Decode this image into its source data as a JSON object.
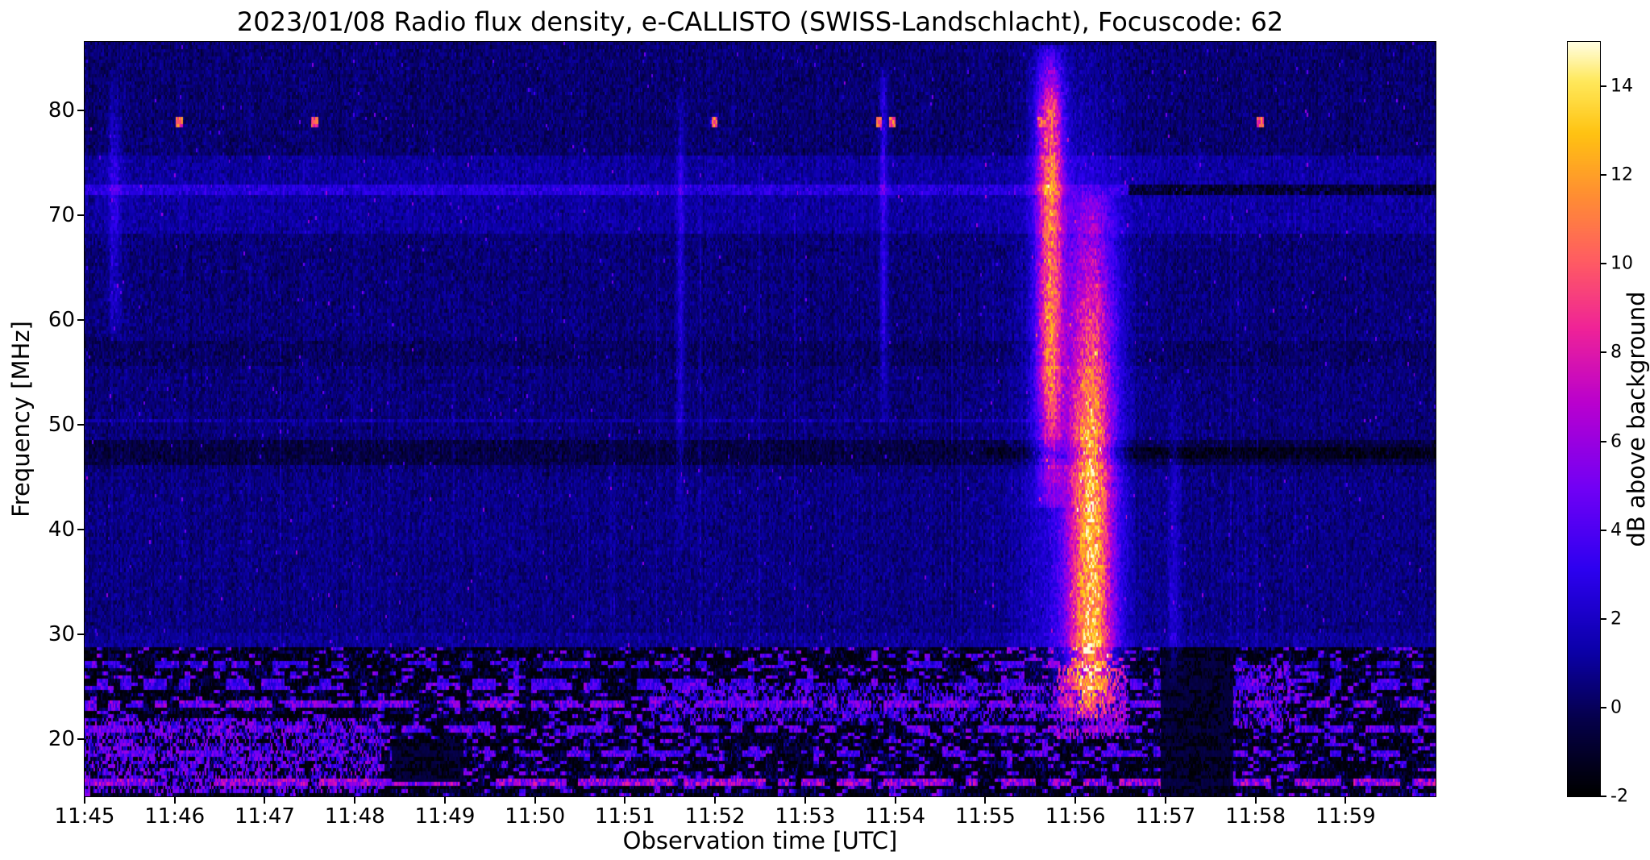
{
  "chart_data": {
    "type": "heatmap",
    "title": "2023/01/08  Radio flux density, e-CALLISTO (SWISS-Landschlacht), Focuscode: 62",
    "xlabel": "Observation time [UTC]",
    "ylabel": "Frequency [MHz]",
    "x_ticks": [
      "11:45",
      "11:46",
      "11:47",
      "11:48",
      "11:49",
      "11:50",
      "11:51",
      "11:52",
      "11:53",
      "11:54",
      "11:55",
      "11:56",
      "11:57",
      "11:58",
      "11:59"
    ],
    "x_range_minutes_after_start": [
      0,
      15
    ],
    "y_ticks": [
      20,
      30,
      40,
      50,
      60,
      70,
      80
    ],
    "y_range_mhz": [
      14.5,
      86.5
    ],
    "grid": false,
    "colorbar": {
      "label": "dB above background",
      "ticks": [
        14,
        12,
        10,
        8,
        6,
        4,
        2,
        0,
        -2
      ],
      "range_db": [
        -2,
        15
      ],
      "colormap": "gnuplot2-like",
      "stops": [
        {
          "pos": 0.0,
          "color": "#000000"
        },
        {
          "pos": 0.1,
          "color": "#05004a"
        },
        {
          "pos": 0.19,
          "color": "#0b00a8"
        },
        {
          "pos": 0.3,
          "color": "#2d00f0"
        },
        {
          "pos": 0.41,
          "color": "#7300f5"
        },
        {
          "pos": 0.52,
          "color": "#b900cf"
        },
        {
          "pos": 0.62,
          "color": "#ef2398"
        },
        {
          "pos": 0.71,
          "color": "#ff5c63"
        },
        {
          "pos": 0.8,
          "color": "#ff9032"
        },
        {
          "pos": 0.88,
          "color": "#ffc312"
        },
        {
          "pos": 0.95,
          "color": "#ffe95c"
        },
        {
          "pos": 1.0,
          "color": "#fffdde"
        }
      ]
    },
    "notable_features": [
      "Strong type III solar radio burst group ~11:55:35-11:56:45 UTC spanning ~22-85 MHz, peak ~14 dB above background",
      "Persistent narrowband RFI line near 72.4 MHz, turning dark after ~11:56:30",
      "Broadband terrestrial interference below ~28 MHz throughout the whole interval",
      "Faint vertical burst lanes near 11:51:37 and 11:53:52 between ~40 and 84 MHz",
      "Point-like bright RFI spots near 78.8 MHz at ~11:46, 11:52, 11:53.8, 11:55.6 and 11:58"
    ],
    "render": {
      "cols": 920,
      "rows": 212,
      "seed": 77,
      "background_db": 0.45,
      "noise_db": 0.65
    },
    "vertical_streaks": {
      "fraction": 0.06,
      "max_db": 1.0
    },
    "bands": [
      {
        "f0": 68.0,
        "f1": 75.5,
        "delta": 0.7
      },
      {
        "f0": 75.5,
        "f1": 86.5,
        "delta": -0.15
      },
      {
        "f0": 46.0,
        "f1": 48.6,
        "delta": -0.9
      },
      {
        "f0": 55.5,
        "f1": 58.0,
        "delta": -0.35
      },
      {
        "f0": 30.0,
        "f1": 45.0,
        "delta": 0.15
      },
      {
        "f0": 28.5,
        "f1": 30.0,
        "delta": 0.5
      }
    ],
    "rfi_lines": [
      {
        "f": 72.4,
        "half_width": 0.5,
        "db": 1.6,
        "t0": 0.0,
        "t1": 11.6
      },
      {
        "f": 72.4,
        "half_width": 0.5,
        "db": -2.2,
        "t0": 11.6,
        "t1": 15.0
      },
      {
        "f": 47.3,
        "half_width": 0.4,
        "db": -1.0,
        "t0": 10.0,
        "t1": 15.0
      },
      {
        "f": 50.3,
        "half_width": 0.25,
        "db": 0.9,
        "t0": 0.0,
        "t1": 10.5
      }
    ],
    "bursts": [
      {
        "name": "type-III-main-high",
        "t_center": 10.72,
        "t_sigma": 0.1,
        "f0": 42,
        "f1": 86,
        "core_f0": 55,
        "core_f1": 80,
        "peak_db": 11.0
      },
      {
        "name": "type-III-main-low",
        "t_center": 11.18,
        "t_sigma": 0.17,
        "f0": 22,
        "f1": 72,
        "core_f0": 28,
        "core_f1": 48,
        "peak_db": 13.0
      },
      {
        "name": "burst-envelope",
        "t_center": 11.0,
        "t_sigma": 0.38,
        "f0": 20,
        "f1": 86,
        "core_f0": 30,
        "core_f1": 60,
        "peak_db": 3.2
      },
      {
        "name": "weak-burst-0",
        "t_center": 0.33,
        "t_sigma": 0.05,
        "f0": 58,
        "f1": 83,
        "core_f0": 62,
        "core_f1": 78,
        "peak_db": 2.2
      },
      {
        "name": "weak-burst-a",
        "t_center": 6.62,
        "t_sigma": 0.03,
        "f0": 38,
        "f1": 82,
        "core_f0": 55,
        "core_f1": 75,
        "peak_db": 2.6
      },
      {
        "name": "weak-burst-b",
        "t_center": 8.87,
        "t_sigma": 0.03,
        "f0": 50,
        "f1": 84,
        "core_f0": 60,
        "core_f1": 82,
        "peak_db": 3.0
      },
      {
        "name": "late-faint",
        "t_center": 12.1,
        "t_sigma": 0.05,
        "f0": 25,
        "f1": 55,
        "core_f0": 30,
        "core_f1": 45,
        "peak_db": 2.0
      }
    ],
    "rfi_dots": {
      "f": 78.8,
      "half_width": 0.6,
      "t_half_width": 0.035,
      "times": [
        1.05,
        2.55,
        7.0,
        8.82,
        8.97,
        10.62,
        13.05
      ],
      "db": 10.5
    },
    "low_band": {
      "f_top": 28.6,
      "base_db": -0.8,
      "noise_db": 1.4,
      "black_fraction": 0.3,
      "bright_fraction": 0.18,
      "bright_db": 4.5,
      "lines": [
        {
          "f": 15.8,
          "db": 6.0,
          "duty": 0.75
        },
        {
          "f": 18.6,
          "db": 4.0,
          "duty": 0.45
        },
        {
          "f": 21.0,
          "db": 4.5,
          "duty": 0.55
        },
        {
          "f": 23.4,
          "db": 5.0,
          "duty": 0.6
        },
        {
          "f": 25.2,
          "db": 3.5,
          "duty": 0.4
        },
        {
          "f": 27.1,
          "db": 3.0,
          "duty": 0.35
        }
      ],
      "hot_zones": [
        {
          "t0": 0.0,
          "t1": 3.3,
          "f0": 15.0,
          "f1": 22.0,
          "db": 5.0
        },
        {
          "t0": 6.3,
          "t1": 11.6,
          "f0": 21.5,
          "f1": 25.5,
          "db": 4.0
        },
        {
          "t0": 10.8,
          "t1": 11.6,
          "f0": 20.0,
          "f1": 27.0,
          "db": 6.0
        },
        {
          "t0": 12.6,
          "t1": 13.4,
          "f0": 21.0,
          "f1": 27.0,
          "db": 5.0
        }
      ],
      "quiet_zones": [
        {
          "t0": 11.95,
          "t1": 12.75,
          "f0": 14.5,
          "f1": 28.6
        },
        {
          "t0": 3.4,
          "t1": 4.2,
          "f0": 16.0,
          "f1": 20.0
        }
      ]
    }
  }
}
